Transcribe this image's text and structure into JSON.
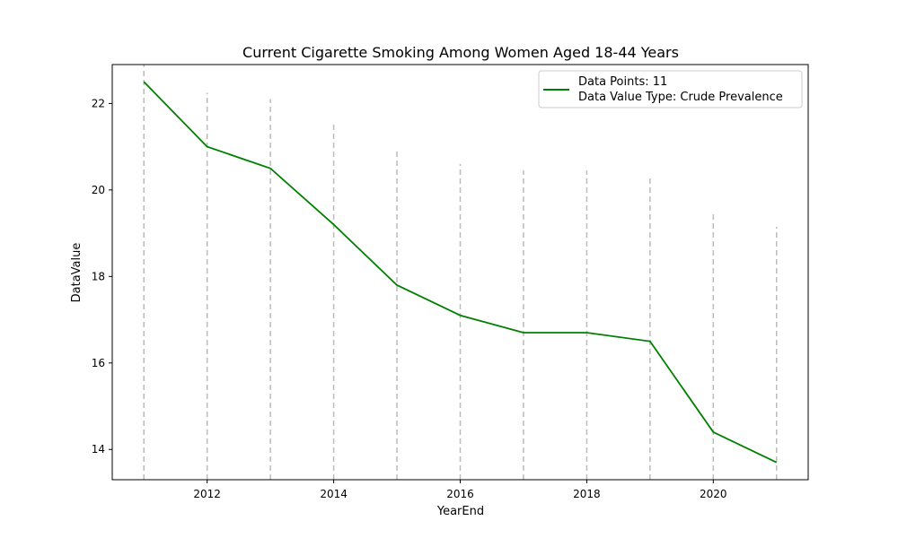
{
  "chart_data": {
    "type": "line",
    "title": "Current Cigarette Smoking Among Women Aged 18-44 Years",
    "xlabel": "YearEnd",
    "ylabel": "DataValue",
    "x": [
      2011,
      2012,
      2013,
      2014,
      2015,
      2016,
      2017,
      2018,
      2019,
      2020,
      2021
    ],
    "series": [
      {
        "name": "Data Points: 11",
        "values": [
          22.5,
          21.0,
          20.5,
          19.2,
          17.8,
          17.1,
          16.7,
          16.7,
          16.5,
          14.4,
          13.7
        ],
        "color": "#008000"
      }
    ],
    "legend": {
      "position": "top-right",
      "lines": [
        "Data Points: 11",
        "Data Value Type: Crude Prevalence"
      ]
    },
    "xlim": [
      2010.5,
      2021.5
    ],
    "ylim": [
      13.3,
      22.9
    ],
    "xticks": [
      2012,
      2014,
      2016,
      2018,
      2020
    ],
    "yticks": [
      14,
      16,
      18,
      20,
      22
    ],
    "drop_lines": {
      "style": "dashed",
      "color": "#bbbbbb",
      "tops": [
        23.0,
        22.25,
        22.1,
        21.55,
        20.9,
        20.6,
        20.45,
        20.45,
        20.35,
        19.45,
        19.15
      ]
    },
    "grid": false
  }
}
